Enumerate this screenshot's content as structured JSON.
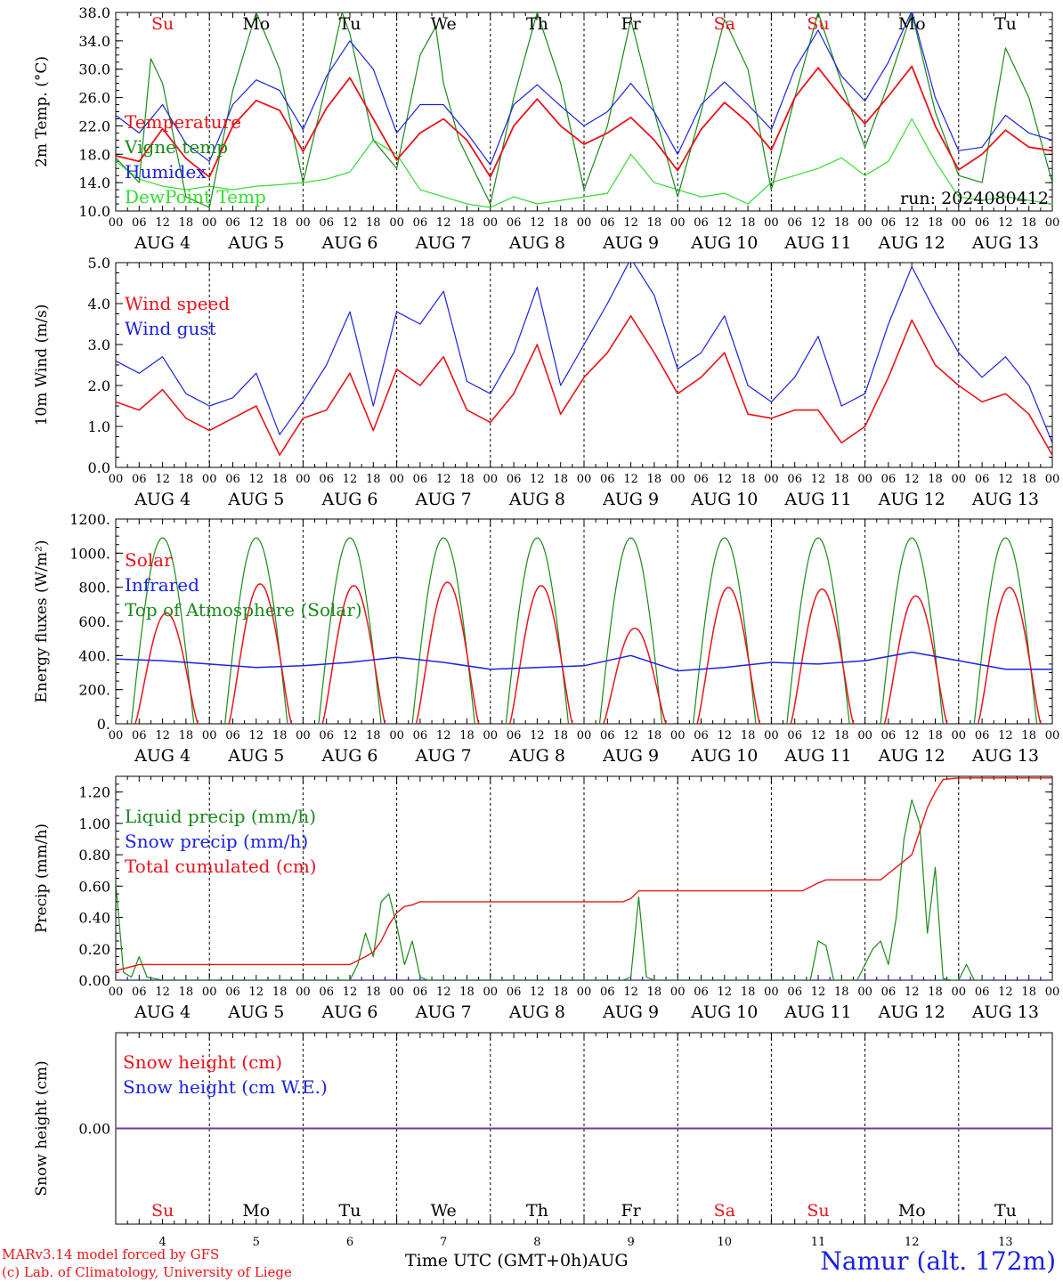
{
  "run_label": "run: 2024080412",
  "footer": {
    "model": "MARv3.14 model forced by GFS",
    "credit": "(c) Lab. of Climatology, University of Liege",
    "time_axis": "Time UTC (GMT+0h)AUG",
    "location": "Namur (alt. 172m)"
  },
  "days": [
    {
      "dow": "Su",
      "date": "AUG  4",
      "num": "4",
      "weekend": true
    },
    {
      "dow": "Mo",
      "date": "AUG  5",
      "num": "5",
      "weekend": false
    },
    {
      "dow": "Tu",
      "date": "AUG  6",
      "num": "6",
      "weekend": false
    },
    {
      "dow": "We",
      "date": "AUG  7",
      "num": "7",
      "weekend": false
    },
    {
      "dow": "Th",
      "date": "AUG  8",
      "num": "8",
      "weekend": false
    },
    {
      "dow": "Fr",
      "date": "AUG  9",
      "num": "9",
      "weekend": false
    },
    {
      "dow": "Sa",
      "date": "AUG 10",
      "num": "10",
      "weekend": true
    },
    {
      "dow": "Su",
      "date": "AUG 11",
      "num": "11",
      "weekend": true
    },
    {
      "dow": "Mo",
      "date": "AUG 12",
      "num": "12",
      "weekend": false
    },
    {
      "dow": "Tu",
      "date": "AUG 13",
      "num": "13",
      "weekend": false
    }
  ],
  "hour_ticks": [
    "00",
    "06",
    "12",
    "18"
  ],
  "final_hour_tick": "00",
  "colors": {
    "red": "#e8141a",
    "green": "#1a8a1a",
    "blue": "#1b22e0",
    "light_green": "#33dd33",
    "purple": "#7a3a9a",
    "weekend": "#e8141a"
  },
  "chart_data": [
    {
      "type": "line",
      "ylabel": "2m Temp. (°C)",
      "ylim": [
        10,
        38
      ],
      "yticks": [
        "10.0",
        "14.0",
        "18.0",
        "22.0",
        "26.0",
        "30.0",
        "34.0",
        "38.0"
      ],
      "ytick_values": [
        10,
        14,
        18,
        22,
        26,
        30,
        34,
        38
      ],
      "x_unit": "hours since Aug 4 00 UTC",
      "series": [
        {
          "name": "Temperature",
          "color": "#e8141a",
          "x": [
            0,
            6,
            12,
            18,
            24,
            30,
            36,
            42,
            48,
            54,
            60,
            66,
            72,
            78,
            84,
            90,
            96,
            102,
            108,
            114,
            120,
            126,
            132,
            138,
            144,
            150,
            156,
            162,
            168,
            174,
            180,
            186,
            192,
            198,
            204,
            210,
            216,
            222,
            228,
            234,
            240
          ],
          "y": [
            17.8,
            17,
            21.6,
            17.4,
            14.8,
            22,
            25.6,
            24.2,
            18.4,
            24.5,
            28.8,
            23,
            17.2,
            21,
            23,
            20,
            14.8,
            22,
            25.8,
            22,
            19.4,
            21,
            23.2,
            20,
            15.7,
            21.5,
            25.3,
            22.5,
            18.6,
            26,
            30.2,
            26,
            22.3,
            26.2,
            30.4,
            22,
            15.8,
            18,
            21.4,
            19,
            18.5
          ]
        },
        {
          "name": "Vigne temp",
          "color": "#1a8a1a",
          "x": [
            0,
            6,
            9,
            12,
            18,
            24,
            30,
            36,
            42,
            48,
            54,
            58,
            60,
            66,
            72,
            78,
            82,
            84,
            88,
            96,
            102,
            108,
            114,
            120,
            126,
            132,
            138,
            144,
            150,
            156,
            162,
            168,
            174,
            180,
            186,
            192,
            198,
            204,
            210,
            216,
            222,
            228,
            234,
            240
          ],
          "y": [
            17.5,
            14,
            31.5,
            28,
            12,
            10.5,
            27,
            38,
            30,
            14,
            28,
            38,
            35,
            20,
            16,
            32,
            36,
            28,
            20,
            11,
            26,
            38,
            28,
            13,
            22,
            37,
            24,
            12,
            24,
            37,
            30,
            13,
            26,
            38,
            28,
            19,
            28,
            38,
            24,
            15,
            14,
            33,
            26,
            14
          ]
        },
        {
          "name": "Humidex",
          "color": "#1b22e0",
          "x": [
            0,
            6,
            12,
            18,
            24,
            30,
            36,
            42,
            48,
            54,
            60,
            66,
            72,
            78,
            84,
            90,
            96,
            102,
            108,
            114,
            120,
            126,
            132,
            138,
            144,
            150,
            156,
            162,
            168,
            174,
            180,
            186,
            192,
            198,
            204,
            210,
            216,
            222,
            228,
            234,
            240
          ],
          "y": [
            23.5,
            21,
            25,
            19.5,
            17,
            25,
            28.5,
            27,
            21.5,
            29,
            34,
            30,
            21,
            25,
            25,
            21,
            16.5,
            25,
            27.8,
            24.8,
            22,
            24,
            28,
            24,
            18,
            25,
            28.2,
            25,
            21.5,
            30,
            35.5,
            29,
            25.5,
            31,
            38.2,
            26,
            18.5,
            19,
            23.5,
            21,
            20
          ]
        },
        {
          "name": "DewPoint Temp",
          "color": "#33dd33",
          "x": [
            0,
            6,
            12,
            18,
            24,
            30,
            36,
            42,
            48,
            54,
            60,
            66,
            72,
            78,
            84,
            90,
            96,
            102,
            108,
            114,
            120,
            126,
            132,
            138,
            144,
            150,
            156,
            162,
            168,
            174,
            180,
            186,
            192,
            198,
            204,
            210,
            216,
            222,
            228,
            234,
            240
          ],
          "y": [
            17,
            14.5,
            13.5,
            13,
            13.5,
            13,
            13.5,
            13.7,
            14,
            14.5,
            15.5,
            20,
            18,
            13,
            12,
            11,
            10.5,
            12,
            11,
            11.5,
            12,
            12.5,
            18,
            14,
            13,
            12,
            12.5,
            11,
            14,
            15,
            16,
            17.5,
            15,
            17,
            23,
            17,
            12,
            11.5,
            12,
            11.5,
            11
          ]
        }
      ]
    },
    {
      "type": "line",
      "ylabel": "10m Wind (m/s)",
      "ylim": [
        0,
        5
      ],
      "yticks": [
        "0.0",
        "1.0",
        "2.0",
        "3.0",
        "4.0",
        "5.0"
      ],
      "ytick_values": [
        0,
        1,
        2,
        3,
        4,
        5
      ],
      "reference_line": 5.0,
      "series": [
        {
          "name": "Wind speed",
          "color": "#e8141a",
          "x": [
            0,
            6,
            12,
            18,
            24,
            30,
            36,
            42,
            48,
            54,
            60,
            66,
            72,
            78,
            84,
            90,
            96,
            102,
            108,
            114,
            120,
            126,
            132,
            138,
            144,
            150,
            156,
            162,
            168,
            174,
            180,
            186,
            192,
            198,
            204,
            210,
            216,
            222,
            228,
            234,
            240
          ],
          "y": [
            1.6,
            1.4,
            1.9,
            1.2,
            0.9,
            1.2,
            1.5,
            0.3,
            1.2,
            1.4,
            2.3,
            0.9,
            2.4,
            2,
            2.7,
            1.4,
            1.1,
            1.8,
            3,
            1.3,
            2.2,
            2.8,
            3.7,
            2.8,
            1.8,
            2.2,
            2.8,
            1.3,
            1.2,
            1.4,
            1.4,
            0.6,
            1,
            2.2,
            3.6,
            2.5,
            2,
            1.6,
            1.8,
            1.3,
            0.3
          ]
        },
        {
          "name": "Wind gust",
          "color": "#1b22e0",
          "x": [
            0,
            6,
            12,
            18,
            24,
            30,
            36,
            42,
            48,
            54,
            60,
            66,
            72,
            78,
            84,
            90,
            96,
            102,
            108,
            114,
            120,
            126,
            132,
            138,
            144,
            150,
            156,
            162,
            168,
            174,
            180,
            186,
            192,
            198,
            204,
            210,
            216,
            222,
            228,
            234,
            240
          ],
          "y": [
            2.6,
            2.3,
            2.7,
            1.8,
            1.5,
            1.7,
            2.3,
            0.8,
            1.6,
            2.5,
            3.8,
            1.5,
            3.8,
            3.5,
            4.3,
            2.1,
            1.8,
            2.8,
            4.4,
            2,
            3,
            4,
            5.1,
            4.2,
            2.4,
            2.8,
            3.7,
            2,
            1.6,
            2.2,
            3.2,
            1.5,
            1.8,
            3.5,
            4.9,
            3.8,
            2.8,
            2.2,
            2.7,
            2,
            0.6
          ]
        }
      ]
    },
    {
      "type": "line",
      "ylabel": "Energy fluxes (W/m²)",
      "ylim": [
        0,
        1200
      ],
      "yticks": [
        "0.",
        "200.",
        "400.",
        "600.",
        "800.",
        "1000.",
        "1200."
      ],
      "ytick_values": [
        0,
        200,
        400,
        600,
        800,
        1000,
        1200
      ],
      "series": [
        {
          "name": "Solar",
          "color": "#e8141a",
          "peaks": [
            650,
            820,
            810,
            830,
            810,
            560,
            800,
            790,
            750,
            800
          ],
          "peak_hours": [
            13,
            13,
            13,
            13,
            13,
            13,
            13,
            13,
            13,
            13
          ]
        },
        {
          "name": "Infrared",
          "color": "#1b22e0",
          "x": [
            0,
            12,
            24,
            36,
            48,
            60,
            72,
            84,
            96,
            108,
            120,
            132,
            144,
            156,
            168,
            180,
            192,
            204,
            216,
            228,
            240
          ],
          "y": [
            380,
            370,
            350,
            330,
            340,
            360,
            390,
            360,
            320,
            330,
            340,
            400,
            310,
            330,
            360,
            350,
            370,
            420,
            370,
            320,
            320
          ]
        },
        {
          "name": "Top of Atmosphere (Solar)",
          "color": "#1a8a1a",
          "peak": 1090,
          "sunrise": 4,
          "sunset": 20
        }
      ]
    },
    {
      "type": "line",
      "ylabel": "Precip (mm/h)",
      "ylim": [
        0,
        1.3
      ],
      "yticks": [
        "0.00",
        "0.20",
        "0.40",
        "0.60",
        "0.80",
        "1.00",
        "1.20"
      ],
      "ytick_values": [
        0,
        0.2,
        0.4,
        0.6,
        0.8,
        1.0,
        1.2
      ],
      "series": [
        {
          "name": "Liquid precip (mm/h)",
          "color": "#1a8a1a",
          "x": [
            0,
            2,
            4,
            6,
            8,
            10,
            12,
            60,
            62,
            64,
            66,
            68,
            70,
            72,
            74,
            76,
            78,
            80,
            130,
            132,
            134,
            136,
            138,
            178,
            180,
            182,
            184,
            190,
            194,
            196,
            198,
            200,
            202,
            204,
            206,
            208,
            210,
            212,
            214,
            216,
            218,
            220,
            222
          ],
          "y": [
            0.62,
            0.05,
            0.02,
            0.15,
            0.02,
            0.01,
            0,
            0,
            0.1,
            0.3,
            0.15,
            0.5,
            0.55,
            0.35,
            0.1,
            0.25,
            0.02,
            0,
            0,
            0.02,
            0.53,
            0.02,
            0,
            0,
            0.25,
            0.22,
            0,
            0,
            0.2,
            0.25,
            0.1,
            0.4,
            0.9,
            1.15,
            1.0,
            0.3,
            0.72,
            0.01,
            0,
            0,
            0.1,
            0,
            0
          ]
        },
        {
          "name": "Snow precip (mm/h)",
          "color": "#1b22e0",
          "x": [
            0,
            240
          ],
          "y": [
            0,
            0
          ]
        },
        {
          "name": "Total cumulated (cm)",
          "color": "#e8141a",
          "x": [
            0,
            6,
            12,
            60,
            64,
            66,
            68,
            70,
            72,
            74,
            76,
            78,
            80,
            84,
            130,
            132,
            134,
            136,
            138,
            176,
            180,
            182,
            186,
            196,
            198,
            200,
            204,
            206,
            208,
            210,
            212,
            216,
            240
          ],
          "y": [
            0.06,
            0.1,
            0.1,
            0.1,
            0.15,
            0.18,
            0.25,
            0.35,
            0.43,
            0.47,
            0.48,
            0.5,
            0.5,
            0.5,
            0.5,
            0.52,
            0.57,
            0.57,
            0.57,
            0.57,
            0.62,
            0.64,
            0.64,
            0.64,
            0.68,
            0.72,
            0.8,
            0.95,
            1.1,
            1.2,
            1.28,
            1.29,
            1.29
          ]
        }
      ]
    },
    {
      "type": "line",
      "ylabel": "Snow height (cm)",
      "yticks": [
        "0.00"
      ],
      "ytick_values": [
        0
      ],
      "series": [
        {
          "name": "Snow height (cm)",
          "color": "#e8141a",
          "x": [
            0,
            240
          ],
          "y": [
            0,
            0
          ]
        },
        {
          "name": "Snow height (cm W.E.)",
          "color": "#1b22e0",
          "x": [
            0,
            240
          ],
          "y": [
            0,
            0
          ]
        }
      ]
    }
  ]
}
